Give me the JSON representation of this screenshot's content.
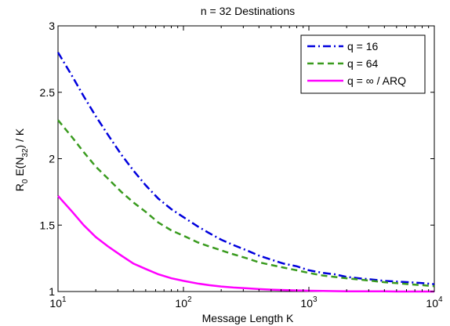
{
  "chart_data": {
    "type": "line",
    "title": "n = 32 Destinations",
    "xlabel": "Message Length K",
    "ylabel": {
      "base": "R",
      "base_sub": "0",
      "mid": " E(N",
      "mid_sub": "32",
      "tail": ") / K"
    },
    "x_scale": "log",
    "xlim": [
      10,
      10000
    ],
    "ylim": [
      1,
      3
    ],
    "x_ticks": [
      {
        "value": 10,
        "base": "10",
        "exp": "1"
      },
      {
        "value": 100,
        "base": "10",
        "exp": "2"
      },
      {
        "value": 1000,
        "base": "10",
        "exp": "3"
      },
      {
        "value": 10000,
        "base": "10",
        "exp": "4"
      }
    ],
    "y_ticks": [
      {
        "value": 1,
        "label": "1"
      },
      {
        "value": 1.5,
        "label": "1.5"
      },
      {
        "value": 2,
        "label": "2"
      },
      {
        "value": 2.5,
        "label": "2.5"
      },
      {
        "value": 3,
        "label": "3"
      }
    ],
    "grid": false,
    "legend_position": "top-right",
    "x": [
      10,
      13,
      16,
      20,
      25,
      32,
      40,
      50,
      63,
      80,
      100,
      130,
      160,
      200,
      250,
      320,
      400,
      500,
      630,
      800,
      1000,
      1300,
      1600,
      2000,
      2500,
      3200,
      4000,
      5000,
      6300,
      8000,
      10000
    ],
    "series": [
      {
        "name": "q = 16",
        "color": "#0000dd",
        "dash": "dashdot",
        "values": [
          2.8,
          2.62,
          2.47,
          2.32,
          2.18,
          2.03,
          1.91,
          1.8,
          1.7,
          1.62,
          1.56,
          1.49,
          1.44,
          1.39,
          1.35,
          1.31,
          1.27,
          1.24,
          1.21,
          1.19,
          1.16,
          1.14,
          1.13,
          1.11,
          1.1,
          1.09,
          1.08,
          1.075,
          1.07,
          1.064,
          1.055
        ]
      },
      {
        "name": "q = 64",
        "color": "#3a9b1f",
        "dash": "dashed",
        "values": [
          2.29,
          2.16,
          2.05,
          1.94,
          1.85,
          1.75,
          1.67,
          1.6,
          1.52,
          1.46,
          1.42,
          1.37,
          1.34,
          1.31,
          1.28,
          1.25,
          1.22,
          1.2,
          1.18,
          1.16,
          1.14,
          1.12,
          1.11,
          1.1,
          1.09,
          1.08,
          1.07,
          1.063,
          1.055,
          1.048,
          1.04
        ]
      },
      {
        "name": "q = ∞ / ARQ",
        "color": "#ff00ff",
        "dash": "solid",
        "values": [
          1.72,
          1.6,
          1.5,
          1.41,
          1.34,
          1.27,
          1.21,
          1.17,
          1.13,
          1.1,
          1.08,
          1.06,
          1.048,
          1.038,
          1.03,
          1.024,
          1.018,
          1.014,
          1.011,
          1.008,
          1.006,
          1.004,
          1.003,
          1.002,
          1.002,
          1.001,
          1.001,
          1.0,
          1.0,
          1.0,
          1.0
        ]
      }
    ]
  }
}
